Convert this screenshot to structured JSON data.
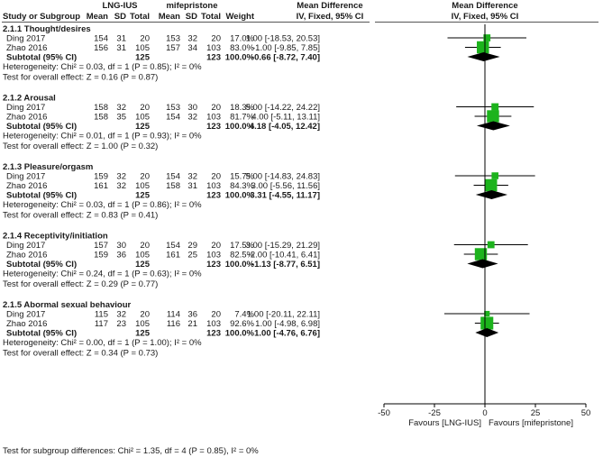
{
  "chart_data": {
    "type": "forest",
    "header": {
      "group1": "LNG-IUS",
      "group2": "mifepristone",
      "study_col": "Study or Subgroup",
      "mean1": "Mean",
      "sd1": "SD",
      "total1": "Total",
      "mean2": "Mean",
      "sd2": "SD",
      "total2": "Total",
      "weight": "Weight",
      "md_title": "Mean Difference",
      "md_method": "IV, Fixed, 95% CI",
      "plot_title": "Mean Difference",
      "plot_method": "IV, Fixed, 95% CI"
    },
    "subgroups": [
      {
        "title": "2.1.1 Thought/desires",
        "studies": [
          {
            "name": "Ding 2017",
            "mean1": "154",
            "sd1": "31",
            "total1": "20",
            "mean2": "153",
            "sd2": "32",
            "total2": "20",
            "weight": "17.0%",
            "ci_text": "1.00 [-18.53, 20.53]",
            "est": 1.0,
            "lo": -18.53,
            "hi": 20.53,
            "w": 17.0
          },
          {
            "name": "Zhao 2016",
            "mean1": "156",
            "sd1": "31",
            "total1": "105",
            "mean2": "157",
            "sd2": "34",
            "total2": "103",
            "weight": "83.0%",
            "ci_text": "-1.00 [-9.85, 7.85]",
            "est": -1.0,
            "lo": -9.85,
            "hi": 7.85,
            "w": 83.0
          }
        ],
        "subtotal": {
          "label": "Subtotal (95% CI)",
          "total1": "125",
          "total2": "123",
          "weight": "100.0%",
          "ci_text": "-0.66 [-8.72, 7.40]",
          "est": -0.66,
          "lo": -8.72,
          "hi": 7.4
        },
        "heterogeneity": "Heterogeneity: Chi² = 0.03, df = 1 (P = 0.85); I² = 0%",
        "overall": "Test for overall effect: Z = 0.16 (P = 0.87)"
      },
      {
        "title": "2.1.2 Arousal",
        "studies": [
          {
            "name": "Ding 2017",
            "mean1": "158",
            "sd1": "32",
            "total1": "20",
            "mean2": "153",
            "sd2": "30",
            "total2": "20",
            "weight": "18.3%",
            "ci_text": "5.00 [-14.22, 24.22]",
            "est": 5.0,
            "lo": -14.22,
            "hi": 24.22,
            "w": 18.3
          },
          {
            "name": "Zhao 2016",
            "mean1": "158",
            "sd1": "35",
            "total1": "105",
            "mean2": "154",
            "sd2": "32",
            "total2": "103",
            "weight": "81.7%",
            "ci_text": "4.00 [-5.11, 13.11]",
            "est": 4.0,
            "lo": -5.11,
            "hi": 13.11,
            "w": 81.7
          }
        ],
        "subtotal": {
          "label": "Subtotal (95% CI)",
          "total1": "125",
          "total2": "123",
          "weight": "100.0%",
          "ci_text": "4.18 [-4.05, 12.42]",
          "est": 4.18,
          "lo": -4.05,
          "hi": 12.42
        },
        "heterogeneity": "Heterogeneity: Chi² = 0.01, df = 1 (P = 0.93); I² = 0%",
        "overall": "Test for overall effect: Z = 1.00 (P = 0.32)"
      },
      {
        "title": "2.1.3 Pleasure/orgasm",
        "studies": [
          {
            "name": "Ding 2017",
            "mean1": "159",
            "sd1": "32",
            "total1": "20",
            "mean2": "154",
            "sd2": "32",
            "total2": "20",
            "weight": "15.7%",
            "ci_text": "5.00 [-14.83, 24.83]",
            "est": 5.0,
            "lo": -14.83,
            "hi": 24.83,
            "w": 15.7
          },
          {
            "name": "Zhao 2016",
            "mean1": "161",
            "sd1": "32",
            "total1": "105",
            "mean2": "158",
            "sd2": "31",
            "total2": "103",
            "weight": "84.3%",
            "ci_text": "3.00 [-5.56, 11.56]",
            "est": 3.0,
            "lo": -5.56,
            "hi": 11.56,
            "w": 84.3
          }
        ],
        "subtotal": {
          "label": "Subtotal (95% CI)",
          "total1": "125",
          "total2": "123",
          "weight": "100.0%",
          "ci_text": "3.31 [-4.55, 11.17]",
          "est": 3.31,
          "lo": -4.55,
          "hi": 11.17
        },
        "heterogeneity": "Heterogeneity: Chi² = 0.03, df = 1 (P = 0.86); I² = 0%",
        "overall": "Test for overall effect: Z = 0.83 (P = 0.41)"
      },
      {
        "title": "2.1.4 Receptivity/initiation",
        "studies": [
          {
            "name": "Ding 2017",
            "mean1": "157",
            "sd1": "30",
            "total1": "20",
            "mean2": "154",
            "sd2": "29",
            "total2": "20",
            "weight": "17.5%",
            "ci_text": "3.00 [-15.29, 21.29]",
            "est": 3.0,
            "lo": -15.29,
            "hi": 21.29,
            "w": 17.5
          },
          {
            "name": "Zhao 2016",
            "mean1": "159",
            "sd1": "36",
            "total1": "105",
            "mean2": "161",
            "sd2": "25",
            "total2": "103",
            "weight": "82.5%",
            "ci_text": "-2.00 [-10.41, 6.41]",
            "est": -2.0,
            "lo": -10.41,
            "hi": 6.41,
            "w": 82.5
          }
        ],
        "subtotal": {
          "label": "Subtotal (95% CI)",
          "total1": "125",
          "total2": "123",
          "weight": "100.0%",
          "ci_text": "-1.13 [-8.77, 6.51]",
          "est": -1.13,
          "lo": -8.77,
          "hi": 6.51
        },
        "heterogeneity": "Heterogeneity: Chi² = 0.24, df = 1 (P = 0.63); I² = 0%",
        "overall": "Test for overall effect: Z = 0.29 (P = 0.77)"
      },
      {
        "title": "2.1.5 Abormal sexual behaviour",
        "studies": [
          {
            "name": "Ding 2017",
            "mean1": "115",
            "sd1": "32",
            "total1": "20",
            "mean2": "114",
            "sd2": "36",
            "total2": "20",
            "weight": "7.4%",
            "ci_text": "1.00 [-20.11, 22.11]",
            "est": 1.0,
            "lo": -20.11,
            "hi": 22.11,
            "w": 7.4
          },
          {
            "name": "Zhao 2016",
            "mean1": "117",
            "sd1": "23",
            "total1": "105",
            "mean2": "116",
            "sd2": "21",
            "total2": "103",
            "weight": "92.6%",
            "ci_text": "1.00 [-4.98, 6.98]",
            "est": 1.0,
            "lo": -4.98,
            "hi": 6.98,
            "w": 92.6
          }
        ],
        "subtotal": {
          "label": "Subtotal (95% CI)",
          "total1": "125",
          "total2": "123",
          "weight": "100.0%",
          "ci_text": "1.00 [-4.76, 6.76]",
          "est": 1.0,
          "lo": -4.76,
          "hi": 6.76
        },
        "heterogeneity": "Heterogeneity: Chi² = 0.00, df = 1 (P = 1.00); I² = 0%",
        "overall": "Test for overall effect: Z = 0.34 (P = 0.73)"
      }
    ],
    "axis": {
      "min": -50,
      "max": 50,
      "ticks": [
        -50,
        -25,
        0,
        25,
        50
      ],
      "tick_labels": [
        "-50",
        "-25",
        "0",
        "25",
        "50"
      ]
    },
    "favours_left": "Favours [LNG-IUS]",
    "favours_right": "Favours [mifepristone]",
    "subgroup_test": "Test for subgroup differences: Chi² = 1.35, df = 4 (P = 0.85), I² = 0%",
    "colors": {
      "square": "#1cb31c",
      "diamond": "#000000",
      "text": "#1a1a1a"
    }
  }
}
